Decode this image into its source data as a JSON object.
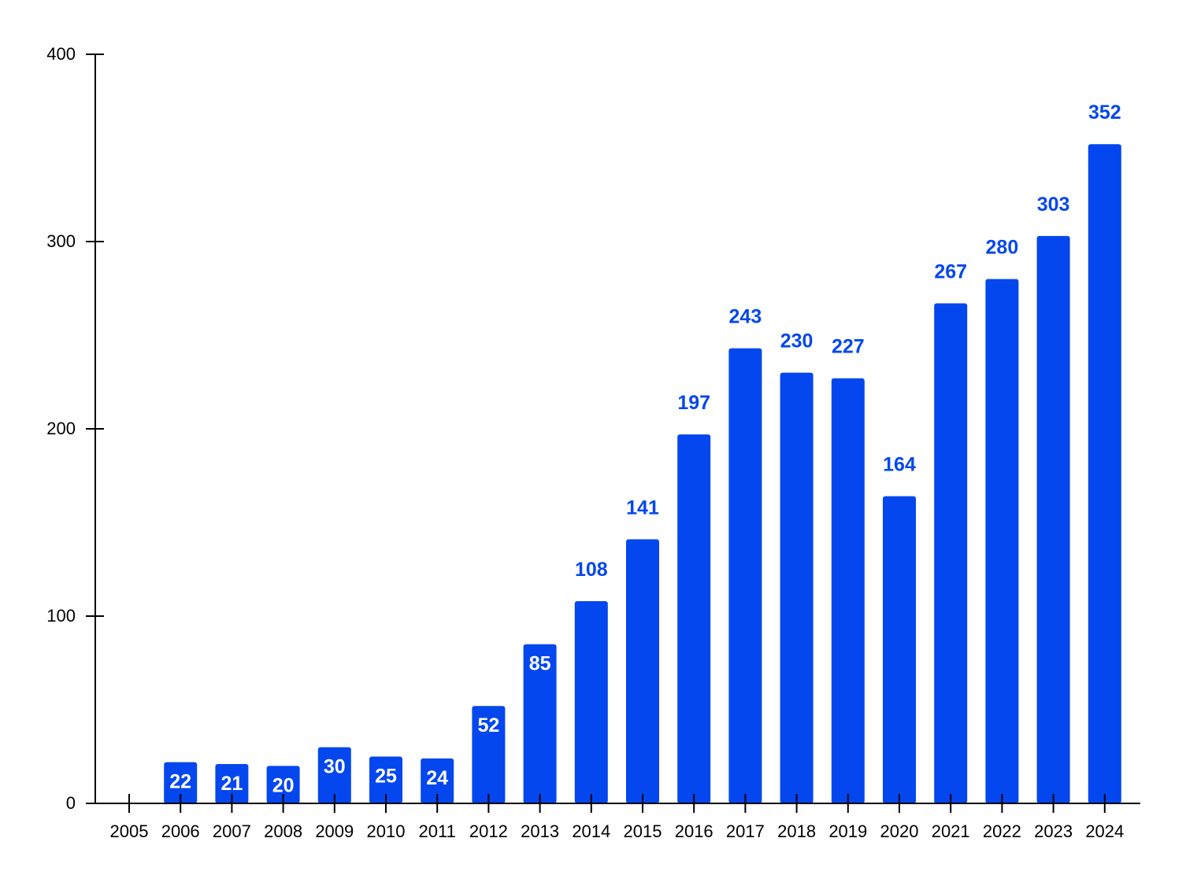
{
  "chart_data": {
    "type": "bar",
    "title": "",
    "xlabel": "",
    "ylabel": "",
    "categories": [
      "2005",
      "2006",
      "2007",
      "2008",
      "2009",
      "2010",
      "2011",
      "2012",
      "2013",
      "2014",
      "2015",
      "2016",
      "2017",
      "2018",
      "2019",
      "2020",
      "2021",
      "2022",
      "2023",
      "2024"
    ],
    "values": [
      0,
      22,
      21,
      20,
      30,
      25,
      24,
      52,
      85,
      108,
      141,
      197,
      243,
      230,
      227,
      164,
      267,
      280,
      303,
      352
    ],
    "data_labels": [
      "",
      "22",
      "21",
      "20",
      "30",
      "25",
      "24",
      "52",
      "85",
      "108",
      "141",
      "197",
      "243",
      "230",
      "227",
      "164",
      "267",
      "280",
      "303",
      "352"
    ],
    "ylim": [
      0,
      400
    ],
    "yticks": [
      0,
      100,
      200,
      300,
      400
    ],
    "ytick_labels": [
      "0",
      "100",
      "200",
      "300",
      "400"
    ],
    "grid": false,
    "legend": "none",
    "colors": {
      "bar": "#0447ee",
      "label_outside": "#0447ee",
      "label_inside": "#ffffff",
      "axis": "#000000"
    }
  }
}
